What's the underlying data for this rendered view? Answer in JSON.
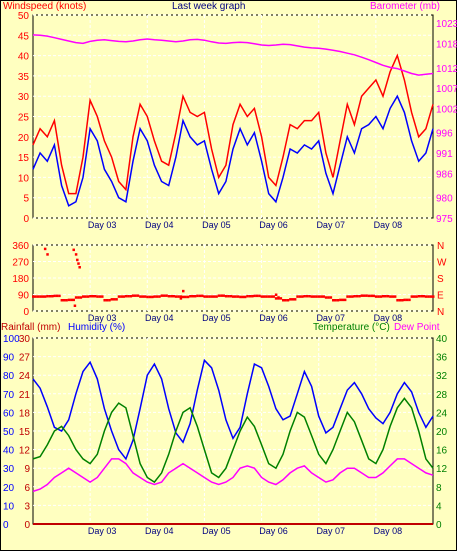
{
  "colors": {
    "background": "#ffffc0",
    "wind_speed": "#0000ff",
    "wind_gust": "#ff0000",
    "barometer": "#ff00ff",
    "direction": "#ff0000",
    "rainfall": "#c00000",
    "humidity": "#0000ff",
    "temperature": "#008000",
    "dew_point": "#ff00ff",
    "grid": "#ffffff"
  },
  "chart_data": [
    {
      "type": "line",
      "title": "Last week graph",
      "ylabel": "Windspeed (knots)",
      "y2label": "Barometer (mb)",
      "ylim": [
        0,
        50
      ],
      "y2lim": [
        975,
        1025
      ],
      "yticks": [
        "0",
        "5",
        "10",
        "15",
        "20",
        "25",
        "30",
        "35",
        "40",
        "45",
        "50"
      ],
      "y2ticks": [
        "975",
        "980",
        "986",
        "991",
        "996",
        "1002",
        "1007",
        "1012",
        "1018",
        "1023"
      ],
      "x": [
        0,
        3,
        6,
        9,
        12,
        15,
        18,
        21,
        24,
        27,
        30,
        33,
        36,
        39,
        42,
        45,
        48,
        51,
        54,
        57,
        60,
        63,
        66,
        69,
        72,
        75,
        78,
        81,
        84,
        87,
        90,
        93,
        96,
        99,
        102,
        105,
        108,
        111,
        114,
        117,
        120,
        123,
        126,
        129,
        132,
        135,
        138,
        141,
        144,
        147,
        150,
        153,
        156,
        159,
        162,
        165,
        168
      ],
      "x_unit": "hours",
      "xticks": [
        "Day 03",
        "Day 04",
        "Day 05",
        "Day 06",
        "Day 07",
        "Day 08"
      ],
      "xtick_hours": [
        24,
        48,
        72,
        96,
        120,
        144
      ],
      "series": [
        {
          "name": "Windspeed",
          "values": [
            12,
            16,
            14,
            18,
            8,
            3,
            4,
            10,
            22,
            19,
            12,
            9,
            5,
            4,
            14,
            22,
            19,
            13,
            9,
            8,
            15,
            24,
            20,
            18,
            19,
            12,
            6,
            9,
            17,
            22,
            18,
            21,
            14,
            6,
            4,
            10,
            17,
            16,
            18,
            17,
            19,
            11,
            6,
            13,
            20,
            16,
            22,
            23,
            25,
            22,
            27,
            30,
            26,
            19,
            14,
            16,
            22
          ]
        },
        {
          "name": "Gust",
          "values": [
            18,
            22,
            20,
            24,
            13,
            6,
            6,
            15,
            29,
            25,
            19,
            15,
            9,
            7,
            20,
            28,
            25,
            19,
            14,
            13,
            21,
            30,
            26,
            25,
            26,
            17,
            10,
            13,
            23,
            28,
            25,
            27,
            20,
            10,
            8,
            15,
            23,
            22,
            24,
            24,
            26,
            16,
            10,
            19,
            28,
            23,
            30,
            32,
            34,
            30,
            36,
            40,
            34,
            26,
            20,
            22,
            28
          ]
        },
        {
          "name": "Barometer",
          "values": [
            1020.1,
            1020,
            1019.8,
            1019.4,
            1019,
            1018.6,
            1018.2,
            1018,
            1018.5,
            1018.8,
            1018.9,
            1018.7,
            1018.5,
            1018.4,
            1018.6,
            1018.9,
            1019.1,
            1018.9,
            1018.8,
            1018.6,
            1018.4,
            1018.6,
            1018.9,
            1019,
            1018.8,
            1018.4,
            1018.1,
            1018,
            1018.2,
            1018.3,
            1018.2,
            1017.9,
            1017.6,
            1017.5,
            1017.6,
            1017.8,
            1017.7,
            1017.4,
            1017.1,
            1016.9,
            1016.8,
            1016.6,
            1016.3,
            1016,
            1015.6,
            1015.2,
            1014.6,
            1014,
            1013.3,
            1012.6,
            1012.1,
            1011.8,
            1011.2,
            1010.6,
            1010.2,
            1010.4,
            1010.6
          ]
        }
      ]
    },
    {
      "type": "scatter",
      "ylabel": "Wind direction",
      "yticks": [
        "0",
        "90",
        "180",
        "270",
        "360"
      ],
      "y2ticks": [
        "N",
        "E",
        "S",
        "W",
        "N"
      ],
      "ylim": [
        0,
        360
      ],
      "xticks": [
        "Day 03",
        "Day 04",
        "Day 05",
        "Day 06",
        "Day 07",
        "Day 08"
      ],
      "series": [
        {
          "name": "Direction",
          "values": [
            80,
            80,
            82,
            84,
            60,
            62,
            75,
            80,
            82,
            80,
            60,
            65,
            80,
            82,
            85,
            80,
            78,
            80,
            85,
            82,
            80,
            78,
            82,
            84,
            80,
            80,
            85,
            82,
            80,
            78,
            82,
            84,
            80,
            80,
            70,
            60,
            65,
            80,
            82,
            80,
            80,
            75,
            60,
            62,
            80,
            82,
            85,
            84,
            80,
            82,
            80,
            60,
            62,
            80,
            82,
            80,
            80
          ]
        },
        {
          "name": "Direction-outliers",
          "x_hours": [
            5,
            6,
            17,
            18,
            18.5,
            19,
            19.5,
            17.5,
            62,
            63,
            102,
            103
          ],
          "values": [
            340,
            310,
            335,
            310,
            280,
            260,
            240,
            30,
            70,
            110,
            90,
            75
          ]
        }
      ]
    },
    {
      "type": "line",
      "ylabel_left_1": "Rainfall (mm)",
      "ylabel_left_2": "Humidity (%)",
      "ylabel_right_1": "Temperature (°C)",
      "ylabel_right_2": "Dew Point",
      "humidity_ticks": [
        "0",
        "10",
        "20",
        "30",
        "40",
        "50",
        "60",
        "70",
        "80",
        "90",
        "100"
      ],
      "rain_ticks": [
        "0",
        "3",
        "6",
        "9",
        "12",
        "15",
        "18",
        "21",
        "24",
        "27",
        "30"
      ],
      "right_ticks": [
        "0",
        "4",
        "8",
        "12",
        "16",
        "20",
        "24",
        "28",
        "32",
        "36",
        "40"
      ],
      "humidity_lim": [
        0,
        100
      ],
      "xticks": [
        "Day 03",
        "Day 04",
        "Day 05",
        "Day 06",
        "Day 07",
        "Day 08"
      ],
      "series": [
        {
          "name": "Humidity",
          "values": [
            78,
            73,
            63,
            52,
            50,
            56,
            70,
            82,
            87,
            78,
            62,
            50,
            40,
            35,
            45,
            62,
            80,
            86,
            78,
            62,
            49,
            44,
            54,
            72,
            88,
            84,
            72,
            56,
            46,
            52,
            70,
            86,
            84,
            74,
            62,
            56,
            58,
            70,
            82,
            74,
            58,
            49,
            52,
            62,
            72,
            76,
            70,
            62,
            57,
            54,
            60,
            70,
            76,
            71,
            60,
            52,
            58
          ]
        },
        {
          "name": "Rainfall",
          "values": [
            0,
            0,
            0,
            0,
            0,
            0,
            0,
            0,
            0,
            0,
            0,
            0,
            0,
            0,
            0,
            0,
            0,
            0,
            0,
            0,
            0,
            0,
            0,
            0,
            0,
            0,
            0,
            0,
            0,
            0,
            0,
            0,
            0,
            0,
            0,
            0,
            0,
            0,
            0,
            0,
            0,
            0,
            0,
            0,
            0,
            0,
            0,
            0,
            0,
            0,
            0,
            0,
            0,
            0,
            0,
            0,
            0
          ]
        },
        {
          "name": "Temperature",
          "values": [
            14,
            14.5,
            17,
            20,
            21,
            19,
            16,
            14,
            13,
            15,
            20,
            24,
            26,
            25,
            19,
            13,
            10,
            9,
            11,
            15,
            20,
            24,
            25,
            21,
            16,
            11,
            10,
            12,
            16,
            20,
            23,
            21,
            17,
            13,
            12,
            15,
            20,
            24,
            23,
            19,
            15,
            13,
            16,
            20,
            24,
            22,
            18,
            14,
            13,
            16,
            21,
            25,
            27,
            25,
            20,
            14,
            12
          ]
        },
        {
          "name": "Dew Point",
          "values": [
            7,
            7.5,
            8.5,
            10,
            11,
            12,
            11,
            10,
            9,
            10,
            12,
            14,
            14,
            13,
            11,
            10,
            9,
            8.5,
            9,
            11,
            12,
            13,
            12,
            11,
            10,
            9,
            8.5,
            9,
            10,
            12,
            12.5,
            12,
            10,
            9,
            8.5,
            9.5,
            11,
            12,
            12.5,
            11,
            10,
            9,
            9.5,
            11,
            12,
            12,
            11,
            10,
            10,
            11,
            12.5,
            14,
            14,
            13,
            12,
            11,
            10.5
          ]
        }
      ]
    }
  ]
}
